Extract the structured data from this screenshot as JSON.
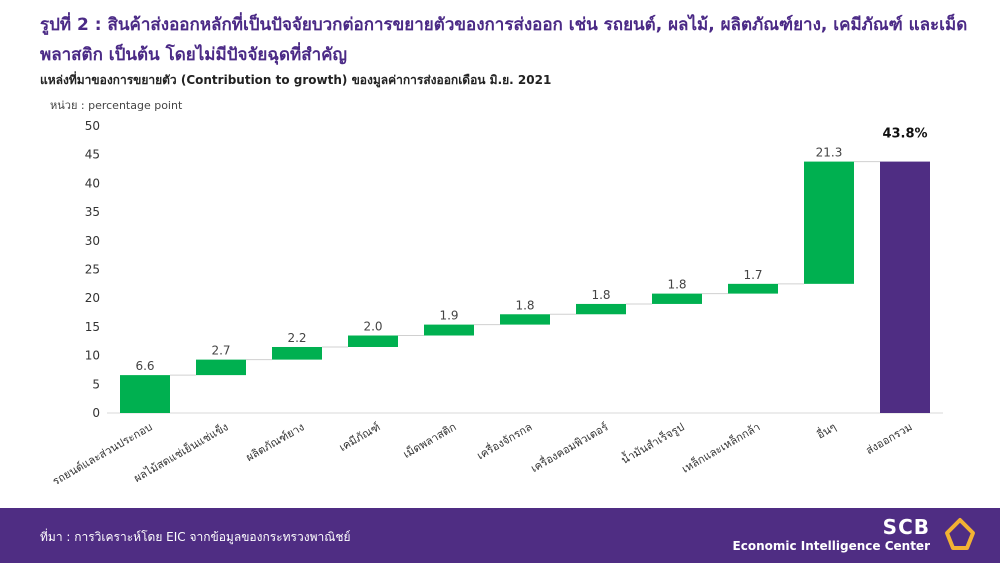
{
  "header": {
    "title": "รูปที่ 2 : สินค้าส่งออกหลักที่เป็นปัจจัยบวกต่อการขยายตัวของการส่งออก เช่น รถยนต์, ผลไม้, ผลิตภัณฑ์ยาง, เคมีภัณฑ์ และเม็ดพลาสติก เป็นต้น โดยไม่มีปัจจัยฉุดที่สำคัญ",
    "subtitle": "แหล่งที่มาของการขยายตัว (Contribution to growth) ของมูลค่าการส่งออกเดือน มิ.ย. 2021",
    "unit": "หน่วย : percentage point"
  },
  "chart_data": {
    "type": "bar",
    "subtype": "waterfall",
    "categories": [
      "รถยนต์และส่วนประกอบ",
      "ผลไม้สดแช่เย็นแช่แข็ง",
      "ผลิตภัณฑ์ยาง",
      "เคมีภัณฑ์",
      "เม็ดพลาสติก",
      "เครื่องจักรกล",
      "เครื่องคอมพิวเตอร์",
      "น้ำมันสำเร็จรูป",
      "เหล็กและเหล็กกล้า",
      "อื่นๆ",
      "ส่งออกรวม"
    ],
    "values": [
      6.6,
      2.7,
      2.2,
      2.0,
      1.9,
      1.8,
      1.8,
      1.8,
      1.7,
      21.3,
      43.8
    ],
    "data_labels": [
      "6.6",
      "2.7",
      "2.2",
      "2.0",
      "1.9",
      "1.8",
      "1.8",
      "1.8",
      "1.7",
      "21.3",
      "43.8%"
    ],
    "total_index": 10,
    "ylim": [
      0,
      50
    ],
    "yticks": [
      0,
      5,
      10,
      15,
      20,
      25,
      30,
      35,
      40,
      45,
      50
    ],
    "grid": false,
    "colors": {
      "increase": "#00b050",
      "total": "#4f2d83",
      "connector": "#d0d0d0"
    }
  },
  "footer": {
    "source": "ที่มา : การวิเคราะห์โดย EIC จากข้อมูลของกระทรวงพาณิชย์",
    "brand_name": "SCB",
    "brand_sub": "Economic Intelligence Center"
  }
}
